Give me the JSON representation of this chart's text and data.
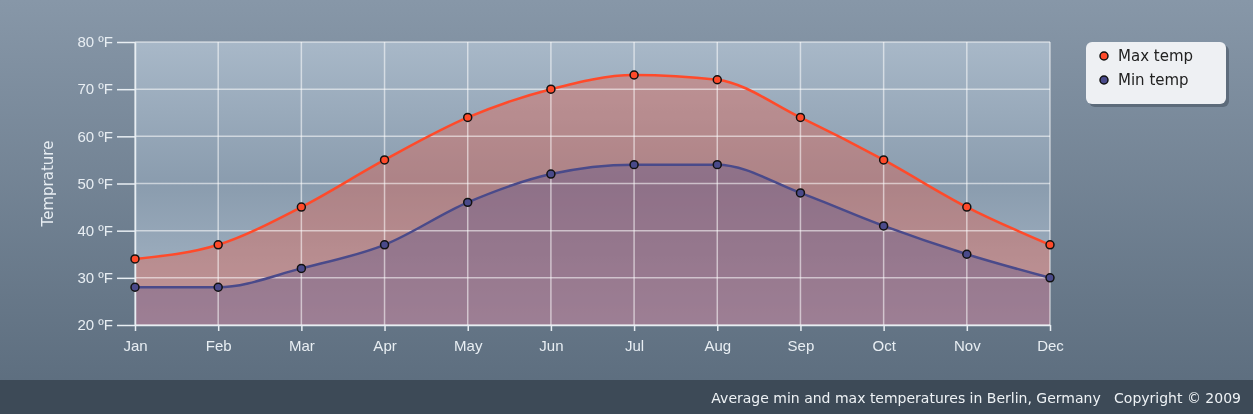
{
  "chart_data": {
    "type": "area",
    "ylabel": "Temprature",
    "categories": [
      "Jan",
      "Feb",
      "Mar",
      "Apr",
      "May",
      "Jun",
      "Jul",
      "Aug",
      "Sep",
      "Oct",
      "Nov",
      "Dec"
    ],
    "series": [
      {
        "name": "Max temp",
        "color": "#ff4a2a",
        "values": [
          34,
          37,
          45,
          55,
          64,
          70,
          73,
          72,
          64,
          55,
          45,
          37
        ]
      },
      {
        "name": "Min temp",
        "color": "#4a4a8a",
        "values": [
          28,
          28,
          32,
          37,
          46,
          52,
          54,
          54,
          48,
          41,
          35,
          30
        ]
      }
    ],
    "ylim": [
      20,
      80
    ],
    "yticks": [
      {
        "value": 20,
        "label": "20 ºF"
      },
      {
        "value": 30,
        "label": "30 ºF"
      },
      {
        "value": 40,
        "label": "40 ºF"
      },
      {
        "value": 50,
        "label": "50 ºF"
      },
      {
        "value": 60,
        "label": "60 ºF"
      },
      {
        "value": 70,
        "label": "70 ºF"
      },
      {
        "value": 80,
        "label": "80 ºF"
      }
    ],
    "grid": true,
    "legend": "top right",
    "marker": "circle",
    "line_style": "solid",
    "annotations": [
      "Average min and max temperatures in Berlin, Germany   Copyright © 2009"
    ]
  }
}
